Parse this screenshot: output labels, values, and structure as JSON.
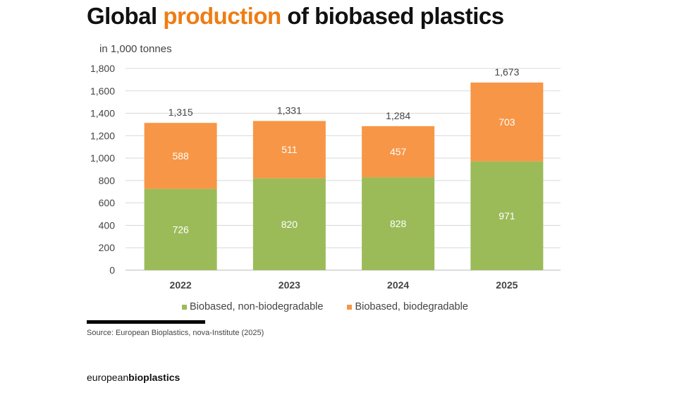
{
  "title": {
    "pre": "Global ",
    "highlight": "production",
    "post": " of biobased plastics"
  },
  "unit": "in 1,000 tonnes",
  "source": "Source: European Bioplastics, nova-Institute (2025)",
  "logo": {
    "light": "european",
    "bold": "bioplastics"
  },
  "colors": {
    "green": "#9bbb59",
    "orange": "#f79646",
    "accent": "#ee7d14"
  },
  "chart_data": {
    "type": "bar",
    "stacked": true,
    "title": "Global production of biobased plastics",
    "ylabel": "in 1,000 tonnes",
    "categories": [
      "2022",
      "2023",
      "2024",
      "2025"
    ],
    "series": [
      {
        "name": "Biobased, non-biodegradable",
        "color": "#9bbb59",
        "values": [
          726,
          820,
          828,
          971
        ]
      },
      {
        "name": "Biobased, biodegradable",
        "color": "#f79646",
        "values": [
          588,
          511,
          457,
          703
        ]
      }
    ],
    "totals": [
      "1,315",
      "1,331",
      "1,284",
      "1,673"
    ],
    "ylim": [
      0,
      1800
    ],
    "yticks": [
      "0",
      "200",
      "400",
      "600",
      "800",
      "1,000",
      "1,200",
      "1,400",
      "1,600",
      "1,800"
    ],
    "grid": true,
    "legend": "bottom"
  }
}
